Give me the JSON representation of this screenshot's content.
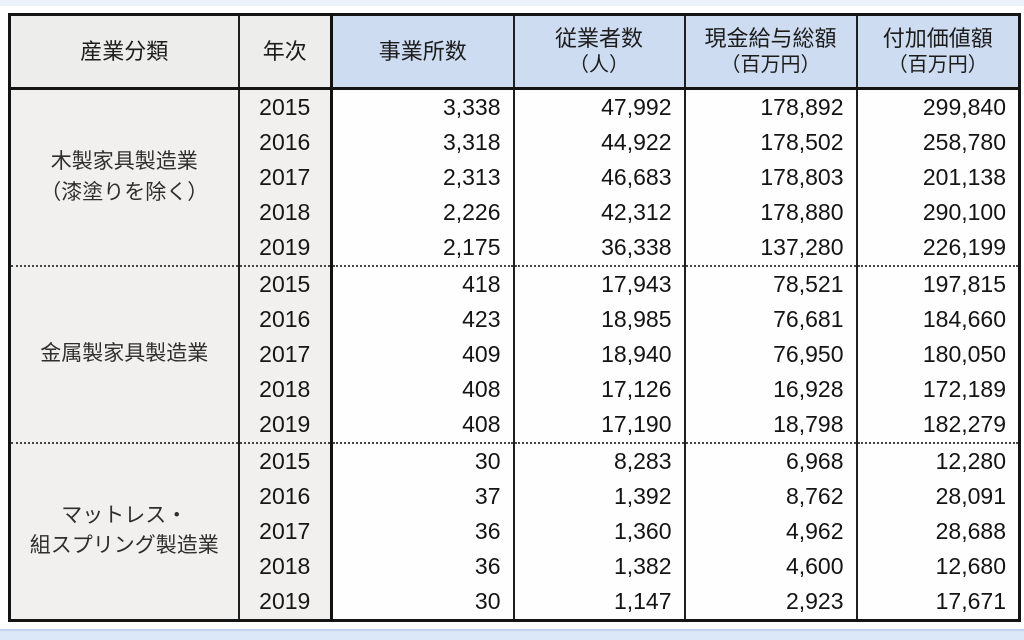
{
  "window": {
    "top_strip_color": "#ecf2fb",
    "bottom_strip_color": "#dce8f7",
    "background": "#ffffff"
  },
  "colors": {
    "header_blue": "#cddcf0",
    "header_gray": "#ededec",
    "label_gray": "#f1f0ef",
    "border_dark": "#141414",
    "group_divider_dotted": "#454545",
    "text": "#1a1a1a"
  },
  "chart_data": {
    "type": "table",
    "title": "",
    "columns": [
      {
        "label": "産業分類",
        "sublabel": "",
        "bg": "gray"
      },
      {
        "label": "年次",
        "sublabel": "",
        "bg": "gray"
      },
      {
        "label": "事業所数",
        "sublabel": "",
        "bg": "blue"
      },
      {
        "label": "従業者数",
        "sublabel": "（人）",
        "bg": "blue"
      },
      {
        "label": "現金給与総額",
        "sublabel": "（百万円）",
        "bg": "blue"
      },
      {
        "label": "付加価値額",
        "sublabel": "（百万円）",
        "bg": "blue"
      }
    ],
    "groups": [
      {
        "industry_lines": [
          "木製家具製造業",
          "（漆塗りを除く）"
        ],
        "rows": [
          {
            "year": "2015",
            "values": [
              "3,338",
              "47,992",
              "178,892",
              "299,840"
            ]
          },
          {
            "year": "2016",
            "values": [
              "3,318",
              "44,922",
              "178,502",
              "258,780"
            ]
          },
          {
            "year": "2017",
            "values": [
              "2,313",
              "46,683",
              "178,803",
              "201,138"
            ]
          },
          {
            "year": "2018",
            "values": [
              "2,226",
              "42,312",
              "178,880",
              "290,100"
            ]
          },
          {
            "year": "2019",
            "values": [
              "2,175",
              "36,338",
              "137,280",
              "226,199"
            ]
          }
        ]
      },
      {
        "industry_lines": [
          "金属製家具製造業"
        ],
        "rows": [
          {
            "year": "2015",
            "values": [
              "418",
              "17,943",
              "78,521",
              "197,815"
            ]
          },
          {
            "year": "2016",
            "values": [
              "423",
              "18,985",
              "76,681",
              "184,660"
            ]
          },
          {
            "year": "2017",
            "values": [
              "409",
              "18,940",
              "76,950",
              "180,050"
            ]
          },
          {
            "year": "2018",
            "values": [
              "408",
              "17,126",
              "16,928",
              "172,189"
            ]
          },
          {
            "year": "2019",
            "values": [
              "408",
              "17,190",
              "18,798",
              "182,279"
            ]
          }
        ]
      },
      {
        "industry_lines": [
          "マットレス・",
          "組スプリング製造業"
        ],
        "rows": [
          {
            "year": "2015",
            "values": [
              "30",
              "8,283",
              "6,968",
              "12,280"
            ]
          },
          {
            "year": "2016",
            "values": [
              "37",
              "1,392",
              "8,762",
              "28,091"
            ]
          },
          {
            "year": "2017",
            "values": [
              "36",
              "1,360",
              "4,962",
              "28,688"
            ]
          },
          {
            "year": "2018",
            "values": [
              "36",
              "1,382",
              "4,600",
              "12,680"
            ]
          },
          {
            "year": "2019",
            "values": [
              "30",
              "1,147",
              "2,923",
              "17,671"
            ]
          }
        ]
      }
    ]
  }
}
